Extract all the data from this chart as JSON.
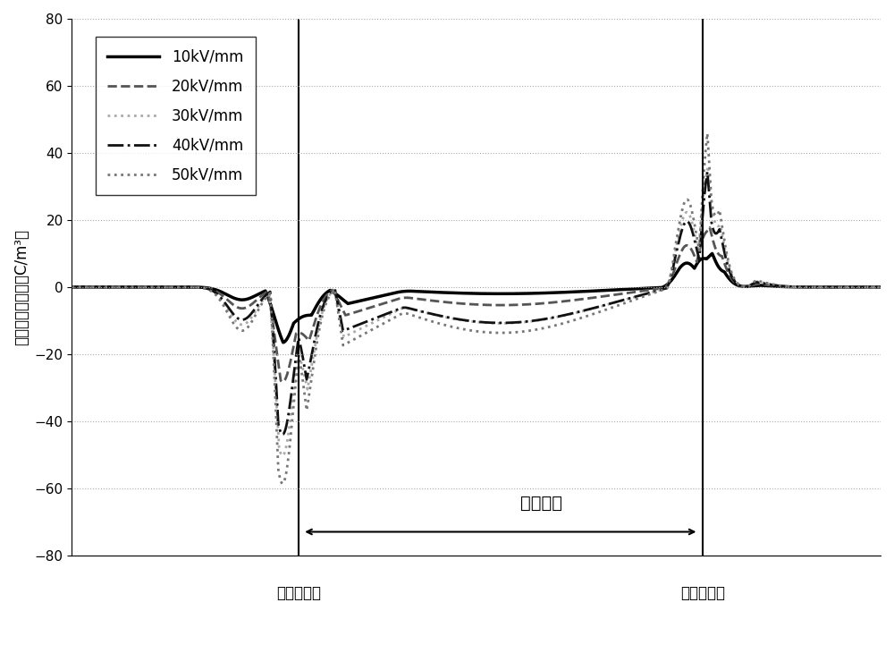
{
  "title": "",
  "ylabel": "空间电荷密度／（C/m³）",
  "xlabel": "",
  "ylim": [
    -80,
    80
  ],
  "xlim": [
    0,
    100
  ],
  "yticks": [
    -80,
    -60,
    -40,
    -20,
    0,
    20,
    40,
    60,
    80
  ],
  "lower_electrode_x": 28,
  "upper_electrode_x": 78,
  "annotation_text": "试样内部",
  "lower_label": "下电极位置",
  "upper_label": "上电极位置",
  "legend_labels": [
    "10kV/mm",
    "20kV/mm",
    "30kV/mm",
    "40kV/mm",
    "50kV/mm"
  ],
  "background_color": "#ffffff",
  "grid_color": "#aaaaaa"
}
